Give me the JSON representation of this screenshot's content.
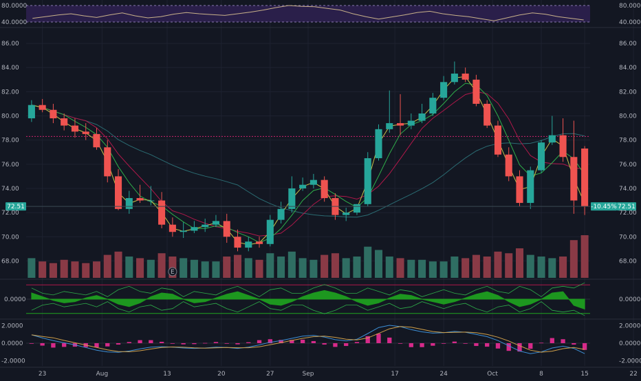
{
  "chart_data": [
    {
      "type": "line",
      "panel": "rsi",
      "series": [
        {
          "values": [
            49,
            53,
            57,
            60,
            55,
            51,
            57,
            62,
            55,
            50,
            53,
            59,
            63,
            60,
            58,
            56,
            60,
            64,
            69,
            75,
            80,
            78,
            77,
            73,
            69,
            60,
            53,
            47,
            52,
            57,
            63,
            66,
            60,
            56,
            53,
            48,
            43,
            50,
            57,
            62,
            59,
            53,
            49,
            45
          ]
        }
      ],
      "levels": [
        40,
        80
      ],
      "ylim": [
        30,
        90
      ],
      "y_ticks": [
        {
          "v": 80,
          "label": "80.0000"
        },
        {
          "v": 40,
          "label": "40.0000"
        }
      ],
      "colors": {
        "line": "#c9b28a",
        "band": "#2a1f4a",
        "levels": "#8a7ab0"
      }
    },
    {
      "type": "candlestick",
      "panel": "price",
      "open": [
        79.8,
        80.9,
        80.5,
        79.8,
        79.2,
        78.7,
        78.5,
        77.4,
        75.0,
        72.3,
        73.2,
        73.0,
        73.0,
        71.0,
        70.4,
        70.5,
        70.8,
        71.0,
        71.3,
        70.0,
        69.1,
        69.6,
        69.4,
        71.4,
        72.3,
        74.0,
        74.3,
        74.7,
        73.2,
        71.8,
        72.0,
        72.7,
        76.5,
        78.9,
        79.4,
        79.2,
        79.6,
        80.2,
        81.5,
        82.8,
        83.5,
        83.0,
        81.0,
        79.2,
        76.8,
        75.0,
        72.8,
        75.5,
        77.8,
        78.4,
        76.6,
        77.3
      ],
      "high": [
        81.3,
        81.4,
        81.0,
        80.2,
        79.8,
        79.4,
        79.0,
        78.0,
        75.6,
        73.8,
        74.3,
        74.2,
        73.7,
        71.6,
        71.2,
        71.3,
        71.5,
        71.8,
        71.9,
        70.6,
        70.0,
        70.0,
        71.8,
        72.9,
        75.0,
        74.9,
        75.2,
        75.0,
        73.6,
        72.4,
        72.7,
        77.0,
        79.3,
        82.1,
        81.8,
        80.2,
        81.0,
        81.9,
        83.3,
        84.5,
        84.0,
        83.4,
        81.3,
        79.6,
        77.4,
        75.5,
        75.8,
        78.0,
        80.0,
        79.8,
        79.6,
        77.5
      ],
      "low": [
        79.5,
        80.3,
        79.4,
        78.8,
        78.2,
        78.0,
        77.2,
        74.5,
        72.2,
        71.9,
        72.8,
        72.6,
        70.7,
        70.0,
        69.9,
        70.3,
        70.4,
        70.8,
        69.5,
        68.8,
        68.8,
        69.1,
        69.2,
        71.1,
        72.0,
        73.8,
        74.0,
        72.9,
        71.4,
        71.3,
        71.8,
        72.5,
        76.3,
        78.6,
        78.4,
        78.9,
        79.4,
        80.0,
        81.3,
        82.6,
        82.8,
        80.8,
        79.0,
        76.6,
        74.6,
        72.5,
        72.3,
        75.3,
        77.6,
        76.2,
        71.9,
        71.8
      ],
      "close": [
        80.9,
        80.5,
        79.8,
        79.2,
        78.7,
        78.5,
        77.4,
        75.0,
        72.3,
        73.2,
        73.0,
        73.0,
        71.0,
        70.4,
        70.5,
        70.8,
        71.0,
        71.3,
        70.0,
        69.1,
        69.6,
        69.4,
        71.4,
        72.3,
        74.0,
        74.3,
        74.7,
        73.2,
        71.8,
        72.0,
        72.7,
        76.5,
        78.9,
        79.4,
        79.2,
        79.6,
        80.2,
        81.5,
        82.8,
        83.5,
        83.0,
        81.0,
        79.2,
        76.8,
        75.0,
        72.8,
        75.5,
        77.8,
        78.4,
        76.6,
        73.0,
        72.5
      ],
      "volume": [
        1.2,
        1.0,
        0.9,
        1.1,
        1.0,
        0.9,
        1.0,
        1.4,
        1.6,
        1.3,
        1.2,
        1.1,
        1.5,
        1.3,
        1.2,
        1.1,
        1.0,
        1.0,
        1.3,
        1.4,
        1.2,
        1.1,
        1.5,
        1.3,
        1.6,
        1.2,
        1.1,
        1.4,
        1.5,
        1.2,
        1.3,
        1.9,
        1.7,
        1.3,
        1.2,
        1.1,
        1.1,
        1.0,
        1.0,
        1.3,
        1.2,
        1.4,
        1.3,
        1.6,
        1.5,
        1.8,
        1.4,
        1.3,
        1.2,
        1.3,
        2.3,
        2.6
      ],
      "ylim": [
        66.6,
        87.2
      ],
      "y_ticks": [
        {
          "v": 86,
          "label": "86.00"
        },
        {
          "v": 84,
          "label": "84.00"
        },
        {
          "v": 82,
          "label": "82.00"
        },
        {
          "v": 80,
          "label": "80.00"
        },
        {
          "v": 78,
          "label": "78.00"
        },
        {
          "v": 76,
          "label": "76.00"
        },
        {
          "v": 74,
          "label": "74.00"
        },
        {
          "v": 72,
          "label": "72.00"
        },
        {
          "v": 70,
          "label": "70.00"
        },
        {
          "v": 68,
          "label": "68.00"
        }
      ],
      "hline": 78.3,
      "last_price_label": "72.51",
      "change_label": "-10.45%",
      "event_marker": {
        "index": 13,
        "label": "E"
      },
      "colors": {
        "up": "#26a69a",
        "down": "#ef5350",
        "vol_up": "#2f6e63",
        "vol_down": "#8a3a46",
        "ma_fast": "#c7c24a",
        "ma_mid": "#2fae4a",
        "ma_slow": "#b0184a",
        "ma_long": "#2b6c73",
        "hline": "#d0246e",
        "last_bg": "#26a69a"
      }
    },
    {
      "type": "area",
      "panel": "oscillator",
      "series": [
        {
          "values": [
            0.05,
            0.02,
            -0.01,
            -0.03,
            -0.02,
            0.01,
            0.03,
            0.0,
            -0.04,
            -0.06,
            -0.03,
            0.02,
            0.05,
            0.04,
            0.0,
            -0.03,
            -0.02,
            0.01,
            0.04,
            0.06,
            0.03,
            0.0,
            -0.04,
            -0.05,
            -0.02,
            0.02,
            0.05,
            0.07,
            0.05,
            0.02,
            -0.02,
            -0.05,
            -0.03,
            0.01,
            0.04,
            0.03,
            0.0,
            -0.02,
            -0.04,
            -0.02,
            0.01,
            0.04,
            0.06,
            0.03,
            -0.02,
            -0.06,
            -0.04,
            0.0,
            0.05,
            0.06,
            -0.05,
            -0.08
          ]
        }
      ],
      "ylim": [
        -0.15,
        0.15
      ],
      "y_ticks": [
        {
          "v": 0,
          "label": "0.0000"
        }
      ],
      "colors": {
        "fill": "#1fa51f",
        "band_top": "#b0184a",
        "band_bottom": "#1fa51f",
        "env": "#2fae4a"
      }
    },
    {
      "type": "bar",
      "panel": "macd",
      "series": [
        {
          "values": [
            0.95,
            0.6,
            0.3,
            0.05,
            -0.2,
            -0.5,
            -0.8,
            -1.0,
            -1.05,
            -0.9,
            -0.65,
            -0.45,
            -0.4,
            -0.45,
            -0.55,
            -0.6,
            -0.55,
            -0.45,
            -0.5,
            -0.6,
            -0.45,
            -0.2,
            0.1,
            0.3,
            0.55,
            0.8,
            0.9,
            0.7,
            0.4,
            0.25,
            0.45,
            1.1,
            1.8,
            2.05,
            1.9,
            1.55,
            1.3,
            1.15,
            1.2,
            1.35,
            1.25,
            1.0,
            0.75,
            0.3,
            -0.3,
            -0.9,
            -1.2,
            -1.0,
            -0.55,
            -0.35,
            -0.6,
            -1.2
          ]
        }
      ],
      "ylim": [
        -2.6,
        2.6
      ],
      "y_ticks": [
        {
          "v": 2,
          "label": "2.0000"
        },
        {
          "v": 0,
          "label": "0.0000"
        },
        {
          "v": -2,
          "label": "-2.0000"
        }
      ],
      "colors": {
        "hist": "#d62a8a",
        "macd": "#3d8fd6",
        "signal": "#d0a04a"
      }
    }
  ],
  "x_axis": {
    "labels": [
      {
        "index": 1,
        "label": "23"
      },
      {
        "index": 6.5,
        "label": "Aug"
      },
      {
        "index": 12.5,
        "label": "13"
      },
      {
        "index": 17.5,
        "label": "20"
      },
      {
        "index": 22,
        "label": "27"
      },
      {
        "index": 25.5,
        "label": "Sep"
      },
      {
        "index": 33.5,
        "label": "17"
      },
      {
        "index": 38,
        "label": "24"
      },
      {
        "index": 42.5,
        "label": "Oct"
      },
      {
        "index": 47,
        "label": "8"
      },
      {
        "index": 51,
        "label": "15"
      },
      {
        "index": 55.5,
        "label": "22"
      }
    ]
  }
}
